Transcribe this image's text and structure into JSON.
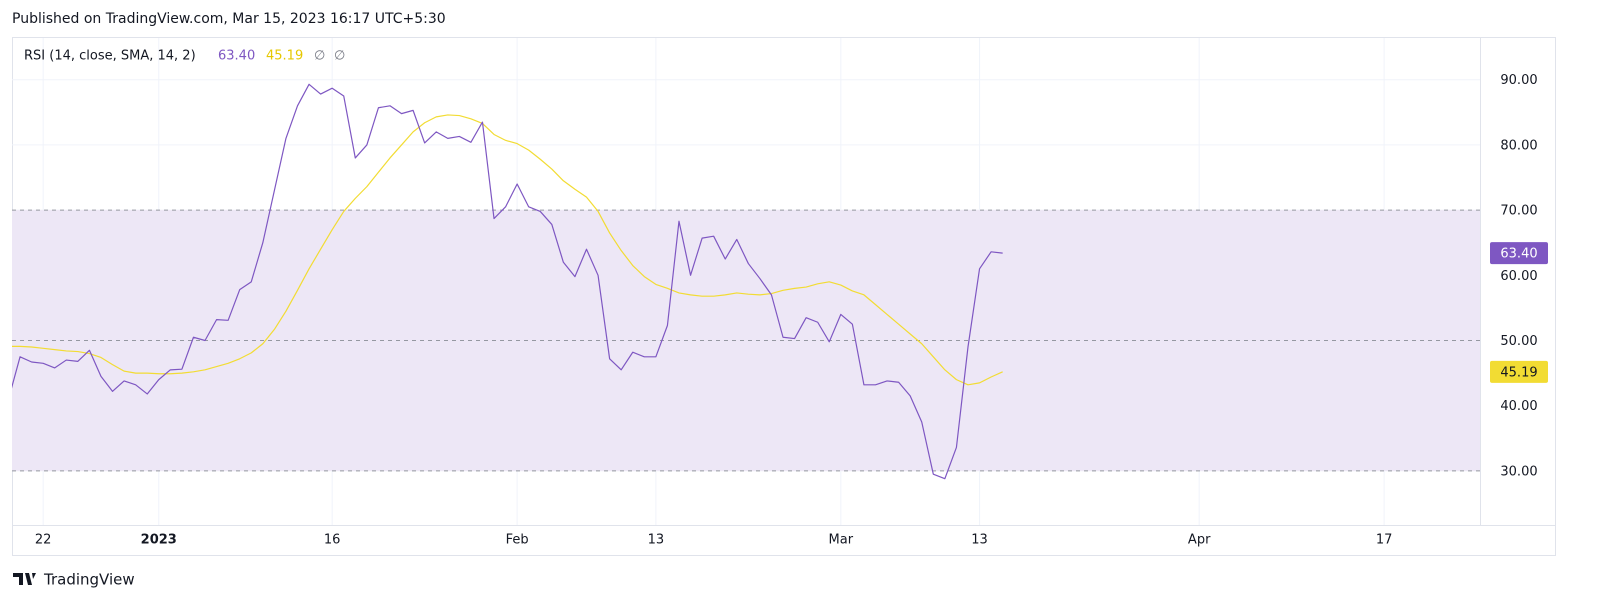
{
  "header": {
    "published": "Published on TradingView.com, Mar 15, 2023 16:17 UTC+5:30",
    "footer": "TradingView"
  },
  "chart_data": {
    "type": "line",
    "title": "RSI (14, close, SMA, 14, 2)",
    "legend_values": [
      "63.40",
      "45.19",
      "∅",
      "∅"
    ],
    "categories": [
      null,
      null,
      null,
      "22",
      null,
      null,
      null,
      null,
      null,
      null,
      null,
      null,
      null,
      "2023",
      null,
      null,
      null,
      null,
      null,
      null,
      null,
      null,
      null,
      null,
      null,
      null,
      null,
      null,
      "16",
      null,
      null,
      null,
      null,
      null,
      null,
      null,
      null,
      null,
      null,
      null,
      null,
      null,
      null,
      null,
      "Feb",
      null,
      null,
      null,
      null,
      null,
      null,
      null,
      null,
      null,
      null,
      null,
      "13",
      null,
      null,
      null,
      null,
      null,
      null,
      null,
      null,
      null,
      null,
      null,
      null,
      null,
      null,
      null,
      "Mar",
      null,
      null,
      null,
      null,
      null,
      null,
      null,
      null,
      null,
      null,
      null,
      "13",
      null,
      null,
      null,
      null,
      null,
      null,
      null,
      null,
      null,
      null,
      null,
      null,
      null,
      null,
      null,
      null,
      null,
      null,
      "Apr",
      null,
      null,
      null,
      null,
      null,
      null,
      null,
      null,
      null,
      null,
      null,
      null,
      null,
      null,
      null,
      "17"
    ],
    "series": [
      {
        "name": "RSI",
        "color": "#7e57c2",
        "values": [
          41,
          47.5,
          46.7,
          46.5,
          45.8,
          47,
          46.8,
          48.5,
          44.5,
          42.2,
          43.8,
          43.2,
          41.8,
          44,
          45.5,
          45.6,
          50.5,
          50,
          53.2,
          53.1,
          57.8,
          59,
          65,
          73,
          81,
          86,
          89.3,
          87.8,
          88.7,
          87.5,
          78,
          80,
          85.7,
          86,
          84.8,
          85.3,
          80.3,
          82,
          81,
          81.3,
          80.4,
          83.5,
          68.7,
          70.5,
          74,
          70.5,
          69.8,
          67.8,
          62,
          59.8,
          64,
          60,
          47.2,
          45.5,
          48.2,
          47.5,
          47.5,
          52.3,
          68.3,
          60,
          65.7,
          66,
          62.5,
          65.5,
          61.8,
          59.5,
          57,
          50.5,
          50.3,
          53.5,
          52.8,
          49.8,
          54,
          52.5,
          43.2,
          43.2,
          43.8,
          43.6,
          41.5,
          37.5,
          29.5,
          28.8,
          33.6,
          49,
          61,
          63.6,
          63.4,
          null,
          null,
          null,
          null,
          null,
          null,
          null,
          null,
          null,
          null,
          null,
          null,
          null,
          null,
          null,
          null,
          null,
          null,
          null,
          null,
          null,
          null,
          null,
          null,
          null,
          null,
          null,
          null,
          null,
          null,
          null,
          null,
          null
        ]
      },
      {
        "name": "SMA",
        "color": "#f2dc33",
        "values": [
          49.1,
          49.1,
          49,
          48.8,
          48.6,
          48.4,
          48.3,
          48,
          47.4,
          46.3,
          45.3,
          45,
          45,
          44.9,
          44.9,
          45,
          45.2,
          45.5,
          46,
          46.5,
          47.2,
          48.1,
          49.5,
          51.7,
          54.5,
          57.7,
          61,
          64,
          67,
          69.8,
          71.8,
          73.6,
          75.8,
          78,
          80,
          82,
          83.4,
          84.3,
          84.6,
          84.5,
          84,
          83.3,
          81.6,
          80.7,
          80.2,
          79.2,
          77.8,
          76.3,
          74.5,
          73.2,
          72,
          69.8,
          66.5,
          63.8,
          61.5,
          59.8,
          58.6,
          58,
          57.3,
          57,
          56.8,
          56.8,
          57,
          57.3,
          57.1,
          57,
          57.2,
          57.7,
          58,
          58.2,
          58.7,
          59,
          58.5,
          57.6,
          57,
          55.5,
          54,
          52.5,
          51,
          49.5,
          47.5,
          45.5,
          44,
          43.2,
          43.5,
          44.4,
          45.19,
          null,
          null,
          null,
          null,
          null,
          null,
          null,
          null,
          null,
          null,
          null,
          null,
          null,
          null,
          null,
          null,
          null,
          null,
          null,
          null,
          null,
          null,
          null,
          null,
          null,
          null,
          null,
          null,
          null,
          null,
          null,
          null,
          null
        ]
      }
    ],
    "ylim": [
      21.7,
      96.4
    ],
    "yticks": [
      {
        "value": 30,
        "label": "30.00"
      },
      {
        "value": 40,
        "label": "40.00"
      },
      {
        "value": 50,
        "label": "50.00"
      },
      {
        "value": 60,
        "label": "60.00"
      },
      {
        "value": 70,
        "label": "70.00"
      },
      {
        "value": 80,
        "label": "80.00"
      },
      {
        "value": 90,
        "label": "90.00"
      }
    ],
    "band_levels": [
      70,
      50,
      30
    ],
    "band_color": "#ede7f6",
    "grid": true
  }
}
